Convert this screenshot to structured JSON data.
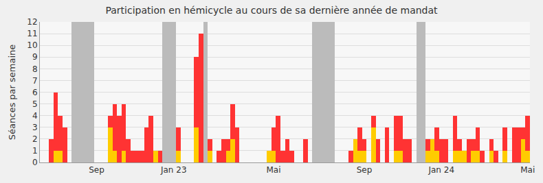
{
  "chart_data": {
    "type": "bar",
    "title": "Participation en hémicycle au cours de sa dernière année de mandat",
    "y_label": "Séances par semaine",
    "categories": [
      null,
      null,
      null,
      null,
      null,
      null,
      null,
      null,
      null,
      null,
      null,
      null,
      "Sep",
      null,
      null,
      null,
      null,
      null,
      null,
      null,
      null,
      null,
      null,
      null,
      null,
      null,
      null,
      null,
      null,
      "Jan 23",
      null,
      null,
      null,
      null,
      null,
      null,
      null,
      null,
      null,
      null,
      null,
      null,
      null,
      null,
      null,
      null,
      null,
      null,
      null,
      null,
      null,
      "Mai",
      null,
      null,
      null,
      null,
      null,
      null,
      null,
      null,
      null,
      null,
      null,
      null,
      null,
      null,
      null,
      null,
      null,
      null,
      null,
      "Sep",
      null,
      null,
      null,
      null,
      null,
      null,
      null,
      null,
      null,
      null,
      null,
      null,
      null,
      null,
      null,
      null,
      "Jan 24",
      null,
      null,
      null,
      null,
      null,
      null,
      null,
      null,
      null,
      null,
      null,
      null,
      null,
      null,
      null,
      null,
      null,
      null,
      "Mai"
    ],
    "series": [
      {
        "color": "#bbbbbb",
        "values": [
          0,
          0,
          0,
          0,
          0,
          0,
          0,
          12,
          12,
          12,
          12,
          12,
          0,
          0,
          0,
          0,
          0,
          0,
          0,
          0,
          0,
          0,
          0,
          0,
          0,
          0,
          0,
          12,
          12,
          12,
          0,
          0,
          0,
          0,
          0,
          0,
          12,
          0,
          0,
          0,
          0,
          0,
          0,
          0,
          0,
          0,
          0,
          0,
          0,
          0,
          0,
          0,
          0,
          0,
          0,
          0,
          0,
          0,
          0,
          0,
          12,
          12,
          12,
          12,
          12,
          0,
          0,
          0,
          0,
          0,
          0,
          0,
          0,
          0,
          0,
          0,
          0,
          0,
          0,
          0,
          0,
          0,
          0,
          12,
          12,
          0,
          0,
          0,
          0,
          0,
          0,
          0,
          0,
          0,
          0,
          0,
          0,
          0,
          0,
          0,
          0,
          0,
          0,
          0,
          0,
          0,
          0,
          0
        ]
      },
      {
        "color": "#ff3333",
        "values": [
          0,
          0,
          2,
          6,
          4,
          3,
          0,
          0,
          0,
          0,
          0,
          0,
          0,
          0,
          0,
          4,
          5,
          4,
          5,
          2,
          1,
          1,
          1,
          3,
          4,
          1,
          1,
          0,
          0,
          0,
          3,
          0,
          0,
          0,
          9,
          11,
          0,
          2,
          0,
          1,
          2,
          2,
          5,
          3,
          0,
          0,
          0,
          0,
          0,
          0,
          1,
          3,
          4,
          1,
          2,
          1,
          0,
          0,
          2,
          0,
          0,
          0,
          0,
          0,
          0,
          0,
          0,
          0,
          1,
          2,
          3,
          2,
          0,
          4,
          2,
          0,
          3,
          0,
          4,
          4,
          2,
          2,
          0,
          0,
          0,
          2,
          2,
          3,
          2,
          2,
          0,
          4,
          2,
          1,
          2,
          2,
          3,
          1,
          0,
          2,
          1,
          0,
          3,
          0,
          3,
          3,
          3,
          4
        ]
      },
      {
        "color": "#ffcc00",
        "values": [
          0,
          0,
          0,
          1,
          1,
          0,
          0,
          0,
          0,
          0,
          0,
          0,
          0,
          0,
          0,
          3,
          1,
          0,
          1,
          0,
          0,
          0,
          0,
          0,
          0,
          1,
          0,
          0,
          0,
          0,
          1,
          0,
          0,
          0,
          3,
          0,
          0,
          1,
          0,
          0,
          0,
          1,
          2,
          0,
          0,
          0,
          0,
          0,
          0,
          0,
          1,
          1,
          0,
          0,
          0,
          0,
          0,
          0,
          0,
          0,
          0,
          0,
          0,
          0,
          0,
          0,
          0,
          0,
          0,
          2,
          1,
          1,
          0,
          3,
          0,
          0,
          0,
          0,
          1,
          1,
          0,
          0,
          0,
          0,
          0,
          1,
          2,
          1,
          0,
          0,
          0,
          1,
          1,
          1,
          0,
          1,
          1,
          0,
          0,
          1,
          0,
          0,
          1,
          0,
          0,
          0,
          2,
          1
        ]
      }
    ],
    "ylim": [
      0,
      12
    ],
    "yticks": [
      0,
      1,
      2,
      3,
      4,
      5,
      6,
      7,
      8,
      9,
      10,
      11,
      12
    ],
    "grid": true
  }
}
